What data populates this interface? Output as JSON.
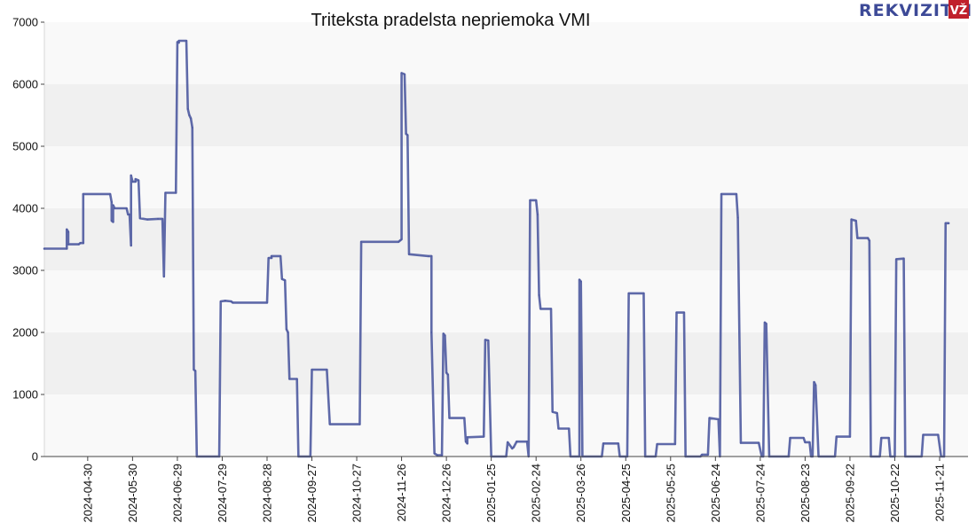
{
  "chart_data": {
    "type": "line",
    "title": "Triteksta pradelsta nepriemoka VMI",
    "xlabel": "",
    "ylabel": "",
    "ylim": [
      0,
      7000
    ],
    "y_ticks": [
      0,
      1000,
      2000,
      3000,
      4000,
      5000,
      6000,
      7000
    ],
    "x_range": [
      "2024-04-01",
      "2025-12-10"
    ],
    "x_ticks": [
      "2024-04-30",
      "2024-05-30",
      "2024-06-29",
      "2024-07-29",
      "2024-08-28",
      "2024-09-27",
      "2024-10-27",
      "2024-11-26",
      "2024-12-26",
      "2025-01-25",
      "2025-02-24",
      "2025-03-26",
      "2025-04-25",
      "2025-05-25",
      "2025-06-24",
      "2025-07-24",
      "2025-08-23",
      "2025-09-22",
      "2025-10-22",
      "2025-11-21"
    ],
    "grid": "horizontal alternating bands",
    "series": [
      {
        "name": "",
        "color": "#3d4a97",
        "points": [
          [
            "2024-04-01",
            3350
          ],
          [
            "2024-04-16",
            3350
          ],
          [
            "2024-04-16",
            3660
          ],
          [
            "2024-04-17",
            3620
          ],
          [
            "2024-04-17",
            3420
          ],
          [
            "2024-04-24",
            3420
          ],
          [
            "2024-04-25",
            3440
          ],
          [
            "2024-04-27",
            3440
          ],
          [
            "2024-04-27",
            4230
          ],
          [
            "2024-05-15",
            4230
          ],
          [
            "2024-05-16",
            4100
          ],
          [
            "2024-05-16",
            3800
          ],
          [
            "2024-05-17",
            3780
          ],
          [
            "2024-05-17",
            4050
          ],
          [
            "2024-05-18",
            4000
          ],
          [
            "2024-05-26",
            4000
          ],
          [
            "2024-05-27",
            3900
          ],
          [
            "2024-05-28",
            3900
          ],
          [
            "2024-05-29",
            3400
          ],
          [
            "2024-05-29",
            4530
          ],
          [
            "2024-05-30",
            4430
          ],
          [
            "2024-06-01",
            4430
          ],
          [
            "2024-06-01",
            4470
          ],
          [
            "2024-06-03",
            4450
          ],
          [
            "2024-06-04",
            3840
          ],
          [
            "2024-06-09",
            3820
          ],
          [
            "2024-06-16",
            3830
          ],
          [
            "2024-06-19",
            3830
          ],
          [
            "2024-06-20",
            2900
          ],
          [
            "2024-06-21",
            4250
          ],
          [
            "2024-06-28",
            4250
          ],
          [
            "2024-06-29",
            6680
          ],
          [
            "2024-06-30",
            6670
          ],
          [
            "2024-06-30",
            6700
          ],
          [
            "2024-07-05",
            6700
          ],
          [
            "2024-07-06",
            5600
          ],
          [
            "2024-07-07",
            5500
          ],
          [
            "2024-07-08",
            5450
          ],
          [
            "2024-07-09",
            5300
          ],
          [
            "2024-07-10",
            1400
          ],
          [
            "2024-07-11",
            1380
          ],
          [
            "2024-07-12",
            0
          ],
          [
            "2024-07-27",
            0
          ],
          [
            "2024-07-28",
            2500
          ],
          [
            "2024-07-31",
            2510
          ],
          [
            "2024-08-04",
            2500
          ],
          [
            "2024-08-05",
            2480
          ],
          [
            "2024-08-28",
            2480
          ],
          [
            "2024-08-29",
            3200
          ],
          [
            "2024-08-31",
            3200
          ],
          [
            "2024-08-31",
            3230
          ],
          [
            "2024-09-06",
            3230
          ],
          [
            "2024-09-07",
            2860
          ],
          [
            "2024-09-09",
            2840
          ],
          [
            "2024-09-10",
            2050
          ],
          [
            "2024-09-11",
            2000
          ],
          [
            "2024-09-12",
            1250
          ],
          [
            "2024-09-17",
            1250
          ],
          [
            "2024-09-18",
            0
          ],
          [
            "2024-09-26",
            0
          ],
          [
            "2024-09-27",
            1400
          ],
          [
            "2024-10-07",
            1400
          ],
          [
            "2024-10-09",
            520
          ],
          [
            "2024-10-29",
            520
          ],
          [
            "2024-10-30",
            3460
          ],
          [
            "2024-11-24",
            3460
          ],
          [
            "2024-11-25",
            3480
          ],
          [
            "2024-11-26",
            3500
          ],
          [
            "2024-11-26",
            6180
          ],
          [
            "2024-11-28",
            6160
          ],
          [
            "2024-11-29",
            5200
          ],
          [
            "2024-11-30",
            5180
          ],
          [
            "2024-12-01",
            3260
          ],
          [
            "2024-12-14",
            3230
          ],
          [
            "2024-12-16",
            3230
          ],
          [
            "2024-12-16",
            2000
          ],
          [
            "2024-12-18",
            50
          ],
          [
            "2024-12-20",
            20
          ],
          [
            "2024-12-23",
            20
          ],
          [
            "2024-12-24",
            1980
          ],
          [
            "2024-12-25",
            1950
          ],
          [
            "2024-12-26",
            1350
          ],
          [
            "2024-12-27",
            1320
          ],
          [
            "2024-12-28",
            620
          ],
          [
            "2025-01-07",
            620
          ],
          [
            "2025-01-08",
            240
          ],
          [
            "2025-01-09",
            210
          ],
          [
            "2025-01-09",
            310
          ],
          [
            "2025-01-20",
            320
          ],
          [
            "2025-01-21",
            1880
          ],
          [
            "2025-01-23",
            1870
          ],
          [
            "2025-01-25",
            0
          ],
          [
            "2025-02-04",
            0
          ],
          [
            "2025-02-05",
            230
          ],
          [
            "2025-02-08",
            130
          ],
          [
            "2025-02-09",
            150
          ],
          [
            "2025-02-11",
            240
          ],
          [
            "2025-02-18",
            240
          ],
          [
            "2025-02-19",
            0
          ],
          [
            "2025-02-20",
            4130
          ],
          [
            "2025-02-24",
            4130
          ],
          [
            "2025-02-25",
            3900
          ],
          [
            "2025-02-26",
            2600
          ],
          [
            "2025-02-27",
            2380
          ],
          [
            "2025-03-06",
            2380
          ],
          [
            "2025-03-07",
            720
          ],
          [
            "2025-03-10",
            700
          ],
          [
            "2025-03-11",
            450
          ],
          [
            "2025-03-18",
            450
          ],
          [
            "2025-03-19",
            0
          ],
          [
            "2025-03-25",
            0
          ],
          [
            "2025-03-25",
            2850
          ],
          [
            "2025-03-26",
            2820
          ],
          [
            "2025-03-27",
            0
          ],
          [
            "2025-04-09",
            0
          ],
          [
            "2025-04-10",
            210
          ],
          [
            "2025-04-20",
            210
          ],
          [
            "2025-04-21",
            0
          ],
          [
            "2025-04-26",
            0
          ],
          [
            "2025-04-27",
            2630
          ],
          [
            "2025-05-07",
            2630
          ],
          [
            "2025-05-08",
            0
          ],
          [
            "2025-05-15",
            0
          ],
          [
            "2025-05-16",
            200
          ],
          [
            "2025-05-28",
            200
          ],
          [
            "2025-05-29",
            2320
          ],
          [
            "2025-06-03",
            2320
          ],
          [
            "2025-06-04",
            0
          ],
          [
            "2025-06-14",
            0
          ],
          [
            "2025-06-15",
            30
          ],
          [
            "2025-06-19",
            30
          ],
          [
            "2025-06-20",
            620
          ],
          [
            "2025-06-26",
            600
          ],
          [
            "2025-06-27",
            0
          ],
          [
            "2025-06-28",
            4230
          ],
          [
            "2025-07-08",
            4230
          ],
          [
            "2025-07-09",
            3850
          ],
          [
            "2025-07-11",
            220
          ],
          [
            "2025-07-23",
            220
          ],
          [
            "2025-07-25",
            0
          ],
          [
            "2025-07-26",
            0
          ],
          [
            "2025-07-27",
            2160
          ],
          [
            "2025-07-28",
            2140
          ],
          [
            "2025-07-30",
            0
          ],
          [
            "2025-08-12",
            0
          ],
          [
            "2025-08-13",
            300
          ],
          [
            "2025-08-22",
            300
          ],
          [
            "2025-08-23",
            230
          ],
          [
            "2025-08-26",
            230
          ],
          [
            "2025-08-27",
            0
          ],
          [
            "2025-08-28",
            0
          ],
          [
            "2025-08-29",
            1200
          ],
          [
            "2025-08-30",
            1150
          ],
          [
            "2025-09-01",
            0
          ],
          [
            "2025-09-12",
            0
          ],
          [
            "2025-09-13",
            320
          ],
          [
            "2025-09-22",
            320
          ],
          [
            "2025-09-23",
            3820
          ],
          [
            "2025-09-26",
            3800
          ],
          [
            "2025-09-27",
            3520
          ],
          [
            "2025-10-04",
            3520
          ],
          [
            "2025-10-05",
            3480
          ],
          [
            "2025-10-06",
            0
          ],
          [
            "2025-10-12",
            0
          ],
          [
            "2025-10-13",
            300
          ],
          [
            "2025-10-18",
            300
          ],
          [
            "2025-10-19",
            0
          ],
          [
            "2025-10-22",
            0
          ],
          [
            "2025-10-23",
            3180
          ],
          [
            "2025-10-28",
            3190
          ],
          [
            "2025-10-29",
            0
          ],
          [
            "2025-11-09",
            0
          ],
          [
            "2025-11-10",
            350
          ],
          [
            "2025-11-20",
            350
          ],
          [
            "2025-11-22",
            0
          ],
          [
            "2025-11-24",
            0
          ],
          [
            "2025-11-25",
            3760
          ],
          [
            "2025-11-27",
            3760
          ]
        ]
      }
    ]
  },
  "logo": {
    "text": "REKVIZITAI",
    "badge": "VŽ"
  }
}
